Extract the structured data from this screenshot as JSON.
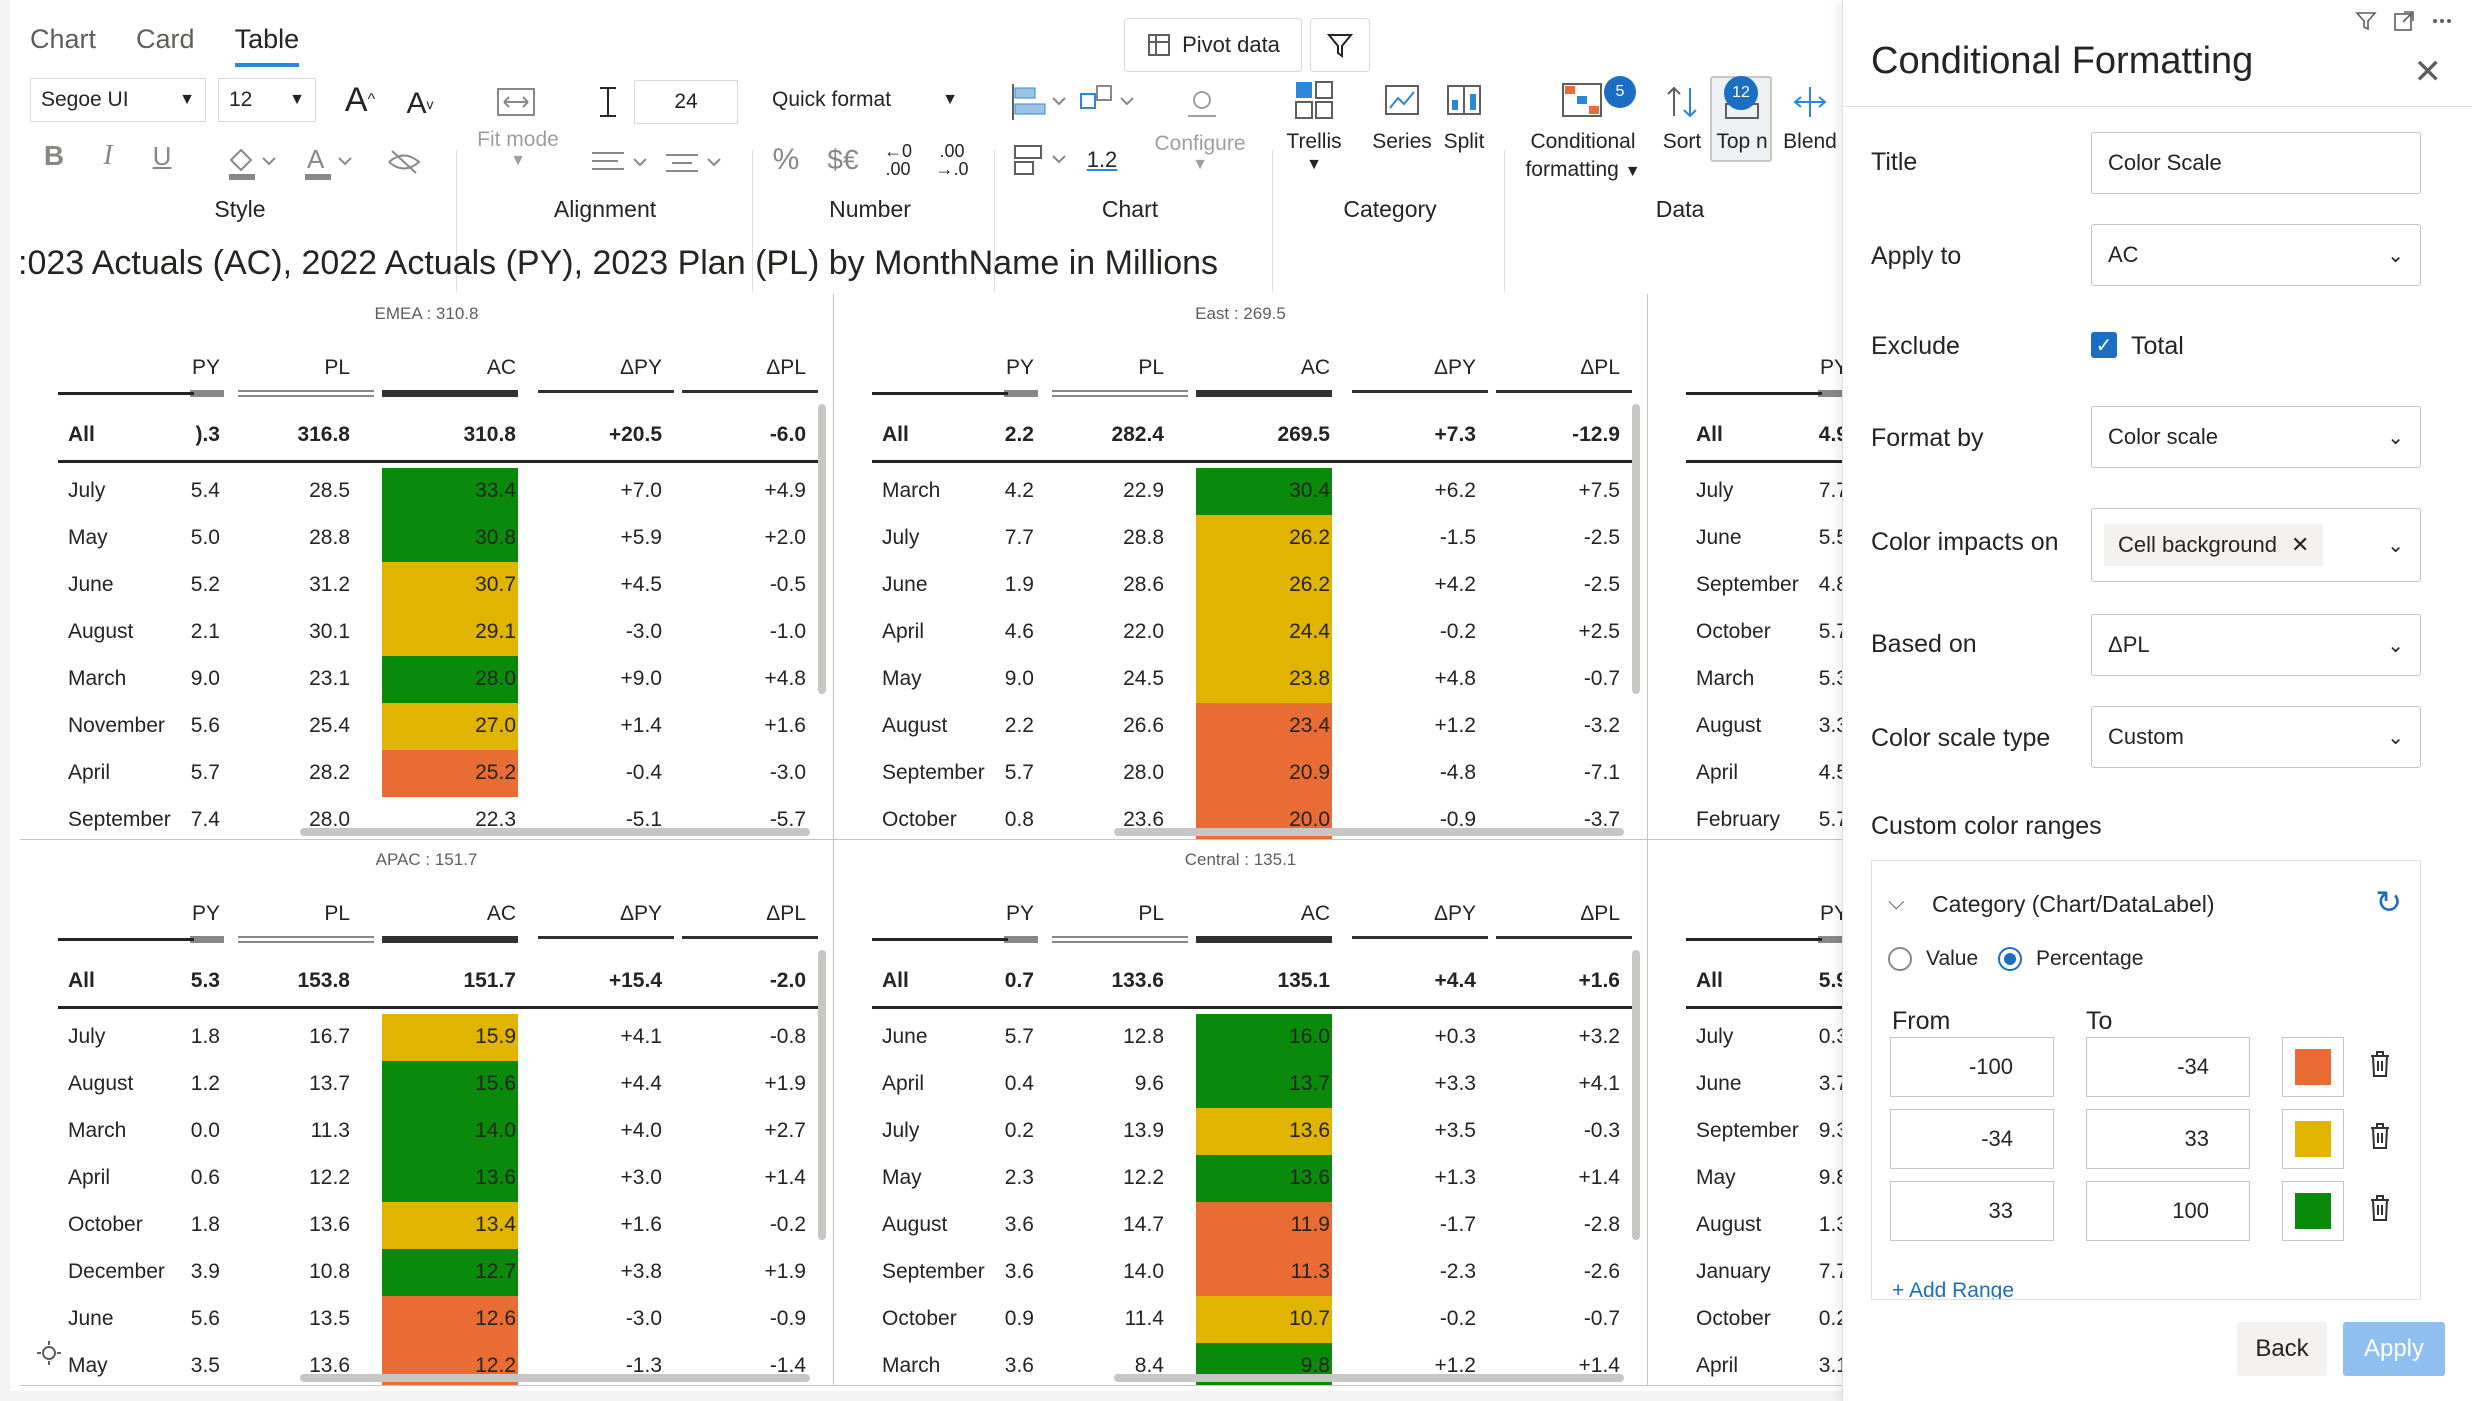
{
  "view_tabs": [
    "Chart",
    "Card",
    "Table"
  ],
  "active_tab": "Table",
  "toolbar": {
    "pivot_label": "Pivot data",
    "font_family": "Segoe UI",
    "font_size": "12",
    "fit_mode_label": "Fit mode",
    "spacing_value": "24",
    "quick_format_label": "Quick format",
    "decimal_value": "1.2",
    "configure_label": "Configure",
    "trellis_label": "Trellis",
    "series_label": "Series",
    "split_label": "Split",
    "conditional_label_1": "Conditional",
    "conditional_label_2": "formatting",
    "conditional_badge": "5",
    "sort_label": "Sort",
    "topn_label": "Top n",
    "topn_badge": "12",
    "blend_label": "Blend",
    "groups": {
      "style": "Style",
      "alignment": "Alignment",
      "number": "Number",
      "chart": "Chart",
      "category": "Category",
      "data": "Data"
    }
  },
  "visual_title": ":023 Actuals (AC), 2022 Actuals (PY), 2023 Plan (PL) by MonthName in Millions",
  "colors": {
    "green": "#0a8a0a",
    "yellow": "#e1b400",
    "orange": "#e86c34",
    "accent": "#1b6ec2"
  },
  "columns": [
    "PY",
    "PL",
    "AC",
    "ΔPY",
    "ΔPL"
  ],
  "panels": [
    {
      "title": "EMEA : 310.8",
      "all": [
        "All",
        ").3",
        "316.8",
        "310.8",
        "+20.5",
        "-6.0"
      ],
      "rows": [
        [
          "July",
          "5.4",
          "28.5",
          "33.4",
          "+7.0",
          "+4.9",
          "g"
        ],
        [
          "May",
          "5.0",
          "28.8",
          "30.8",
          "+5.9",
          "+2.0",
          "g"
        ],
        [
          "June",
          "5.2",
          "31.2",
          "30.7",
          "+4.5",
          "-0.5",
          "y"
        ],
        [
          "August",
          "2.1",
          "30.1",
          "29.1",
          "-3.0",
          "-1.0",
          "y"
        ],
        [
          "March",
          "9.0",
          "23.1",
          "28.0",
          "+9.0",
          "+4.8",
          "g"
        ],
        [
          "November",
          "5.6",
          "25.4",
          "27.0",
          "+1.4",
          "+1.6",
          "y"
        ],
        [
          "April",
          "5.7",
          "28.2",
          "25.2",
          "-0.4",
          "-3.0",
          "o"
        ],
        [
          "September",
          "7.4",
          "28.0",
          "22.3",
          "-5.1",
          "-5.7",
          "n"
        ]
      ]
    },
    {
      "title": "East : 269.5",
      "all": [
        "All",
        "2.2",
        "282.4",
        "269.5",
        "+7.3",
        "-12.9"
      ],
      "rows": [
        [
          "March",
          "4.2",
          "22.9",
          "30.4",
          "+6.2",
          "+7.5",
          "g"
        ],
        [
          "July",
          "7.7",
          "28.8",
          "26.2",
          "-1.5",
          "-2.5",
          "y"
        ],
        [
          "June",
          "1.9",
          "28.6",
          "26.2",
          "+4.2",
          "-2.5",
          "y"
        ],
        [
          "April",
          "4.6",
          "22.0",
          "24.4",
          "-0.2",
          "+2.5",
          "y"
        ],
        [
          "May",
          "9.0",
          "24.5",
          "23.8",
          "+4.8",
          "-0.7",
          "y"
        ],
        [
          "August",
          "2.2",
          "26.6",
          "23.4",
          "+1.2",
          "-3.2",
          "o"
        ],
        [
          "September",
          "5.7",
          "28.0",
          "20.9",
          "-4.8",
          "-7.1",
          "o"
        ],
        [
          "October",
          "0.8",
          "23.6",
          "20.0",
          "-0.9",
          "-3.7",
          "o"
        ]
      ]
    },
    {
      "title": "",
      "all": [
        "All",
        "4.9",
        "",
        "",
        "",
        ""
      ],
      "rows": [
        [
          "July",
          "7.7",
          "",
          "",
          "",
          "",
          "n"
        ],
        [
          "June",
          "5.5",
          "",
          "",
          "",
          "",
          "n"
        ],
        [
          "September",
          "4.8",
          "",
          "",
          "",
          "",
          "n"
        ],
        [
          "October",
          "5.7",
          "",
          "",
          "",
          "",
          "n"
        ],
        [
          "March",
          "5.3",
          "",
          "",
          "",
          "",
          "n"
        ],
        [
          "August",
          "3.3",
          "",
          "",
          "",
          "",
          "n"
        ],
        [
          "April",
          "4.5",
          "",
          "",
          "",
          "",
          "n"
        ],
        [
          "February",
          "5.7",
          "",
          "",
          "",
          "",
          "n"
        ]
      ]
    },
    {
      "title": "APAC : 151.7",
      "all": [
        "All",
        "5.3",
        "153.8",
        "151.7",
        "+15.4",
        "-2.0"
      ],
      "rows": [
        [
          "July",
          "1.8",
          "16.7",
          "15.9",
          "+4.1",
          "-0.8",
          "y"
        ],
        [
          "August",
          "1.2",
          "13.7",
          "15.6",
          "+4.4",
          "+1.9",
          "g"
        ],
        [
          "March",
          "0.0",
          "11.3",
          "14.0",
          "+4.0",
          "+2.7",
          "g"
        ],
        [
          "April",
          "0.6",
          "12.2",
          "13.6",
          "+3.0",
          "+1.4",
          "g"
        ],
        [
          "October",
          "1.8",
          "13.6",
          "13.4",
          "+1.6",
          "-0.2",
          "y"
        ],
        [
          "December",
          "3.9",
          "10.8",
          "12.7",
          "+3.8",
          "+1.9",
          "g"
        ],
        [
          "June",
          "5.6",
          "13.5",
          "12.6",
          "-3.0",
          "-0.9",
          "o"
        ],
        [
          "May",
          "3.5",
          "13.6",
          "12.2",
          "-1.3",
          "-1.4",
          "o"
        ]
      ]
    },
    {
      "title": "Central : 135.1",
      "all": [
        "All",
        "0.7",
        "133.6",
        "135.1",
        "+4.4",
        "+1.6"
      ],
      "rows": [
        [
          "June",
          "5.7",
          "12.8",
          "16.0",
          "+0.3",
          "+3.2",
          "g"
        ],
        [
          "April",
          "0.4",
          "9.6",
          "13.7",
          "+3.3",
          "+4.1",
          "g"
        ],
        [
          "July",
          "0.2",
          "13.9",
          "13.6",
          "+3.5",
          "-0.3",
          "y"
        ],
        [
          "May",
          "2.3",
          "12.2",
          "13.6",
          "+1.3",
          "+1.4",
          "g"
        ],
        [
          "August",
          "3.6",
          "14.7",
          "11.9",
          "-1.7",
          "-2.8",
          "o"
        ],
        [
          "September",
          "3.6",
          "14.0",
          "11.3",
          "-2.3",
          "-2.6",
          "o"
        ],
        [
          "October",
          "0.9",
          "11.4",
          "10.7",
          "-0.2",
          "-0.7",
          "y"
        ],
        [
          "March",
          "3.6",
          "8.4",
          "9.8",
          "+1.2",
          "+1.4",
          "g"
        ]
      ]
    },
    {
      "title": "",
      "all": [
        "All",
        "5.9",
        "",
        "",
        "",
        ""
      ],
      "rows": [
        [
          "July",
          "0.3",
          "",
          "",
          "",
          "",
          "n"
        ],
        [
          "June",
          "3.7",
          "",
          "",
          "",
          "",
          "n"
        ],
        [
          "September",
          "9.3",
          "",
          "",
          "",
          "",
          "n"
        ],
        [
          "May",
          "9.8",
          "",
          "",
          "",
          "",
          "n"
        ],
        [
          "August",
          "1.3",
          "",
          "",
          "",
          "",
          "n"
        ],
        [
          "January",
          "7.7",
          "",
          "",
          "",
          "",
          "n"
        ],
        [
          "October",
          "0.2",
          "",
          "",
          "",
          "",
          "n"
        ],
        [
          "April",
          "3.1",
          "",
          "",
          "",
          "",
          "n"
        ]
      ]
    }
  ],
  "pane": {
    "title": "Conditional Formatting",
    "title_label": "Title",
    "title_value": "Color Scale",
    "apply_to_label": "Apply to",
    "apply_to_value": "AC",
    "exclude_label": "Exclude",
    "exclude_value": "Total",
    "format_by_label": "Format by",
    "format_by_value": "Color scale",
    "color_impacts_label": "Color impacts on",
    "color_impacts_value": "Cell background",
    "based_on_label": "Based on",
    "based_on_value": "ΔPL",
    "scale_type_label": "Color scale type",
    "scale_type_value": "Custom",
    "custom_ranges_label": "Custom color ranges",
    "section_label": "Category (Chart/DataLabel)",
    "radio_value": "Value",
    "radio_percentage": "Percentage",
    "from_label": "From",
    "to_label": "To",
    "ranges": [
      {
        "from": "-100",
        "to": "-34",
        "color": "#e86c34"
      },
      {
        "from": "-34",
        "to": "33",
        "color": "#e1b400"
      },
      {
        "from": "33",
        "to": "100",
        "color": "#0a8a0a"
      }
    ],
    "add_range": "+ Add Range",
    "back": "Back",
    "apply": "Apply"
  }
}
